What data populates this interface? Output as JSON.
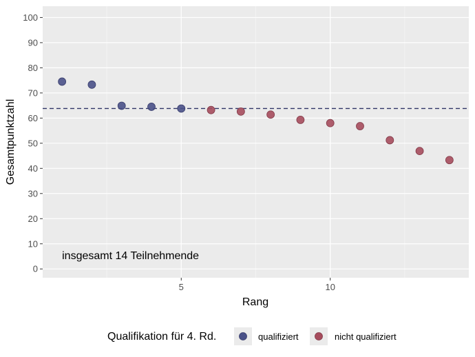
{
  "chart_data": {
    "type": "scatter",
    "xlabel": "Rang",
    "ylabel": "Gesamtpunktzahl",
    "xlim": [
      0.35,
      14.65
    ],
    "ylim": [
      -3.5,
      104.5
    ],
    "x_ticks": [
      5,
      10
    ],
    "x_minor_ticks": [
      2.5,
      7.5,
      12.5
    ],
    "y_ticks": [
      0,
      10,
      20,
      30,
      40,
      50,
      60,
      70,
      80,
      90,
      100
    ],
    "threshold_line": {
      "y": 63.8,
      "style": "dashed",
      "color": "#2f3466"
    },
    "annotation": {
      "text": "insgesamt 14 Teilnehmende",
      "x": 1,
      "y": 5.5
    },
    "legend": {
      "title": "Qualifikation für 4. Rd.",
      "position": "bottom",
      "entries": [
        {
          "label": "qualifiziert",
          "color": "#4a5188"
        },
        {
          "label": "nicht qualifiziert",
          "color": "#a64c5d"
        }
      ]
    },
    "series": [
      {
        "name": "qualifiziert",
        "color": "#4a5188",
        "points": [
          {
            "x": 1,
            "y": 74.5
          },
          {
            "x": 2,
            "y": 73.3
          },
          {
            "x": 3,
            "y": 64.9
          },
          {
            "x": 4,
            "y": 64.5
          },
          {
            "x": 5,
            "y": 63.8
          }
        ]
      },
      {
        "name": "nicht qualifiziert",
        "color": "#a64c5d",
        "points": [
          {
            "x": 6,
            "y": 63.2
          },
          {
            "x": 7,
            "y": 62.6
          },
          {
            "x": 8,
            "y": 61.4
          },
          {
            "x": 9,
            "y": 59.3
          },
          {
            "x": 10,
            "y": 58.0
          },
          {
            "x": 11,
            "y": 56.8
          },
          {
            "x": 12,
            "y": 51.2
          },
          {
            "x": 13,
            "y": 46.9
          },
          {
            "x": 14,
            "y": 43.3
          }
        ]
      }
    ]
  }
}
